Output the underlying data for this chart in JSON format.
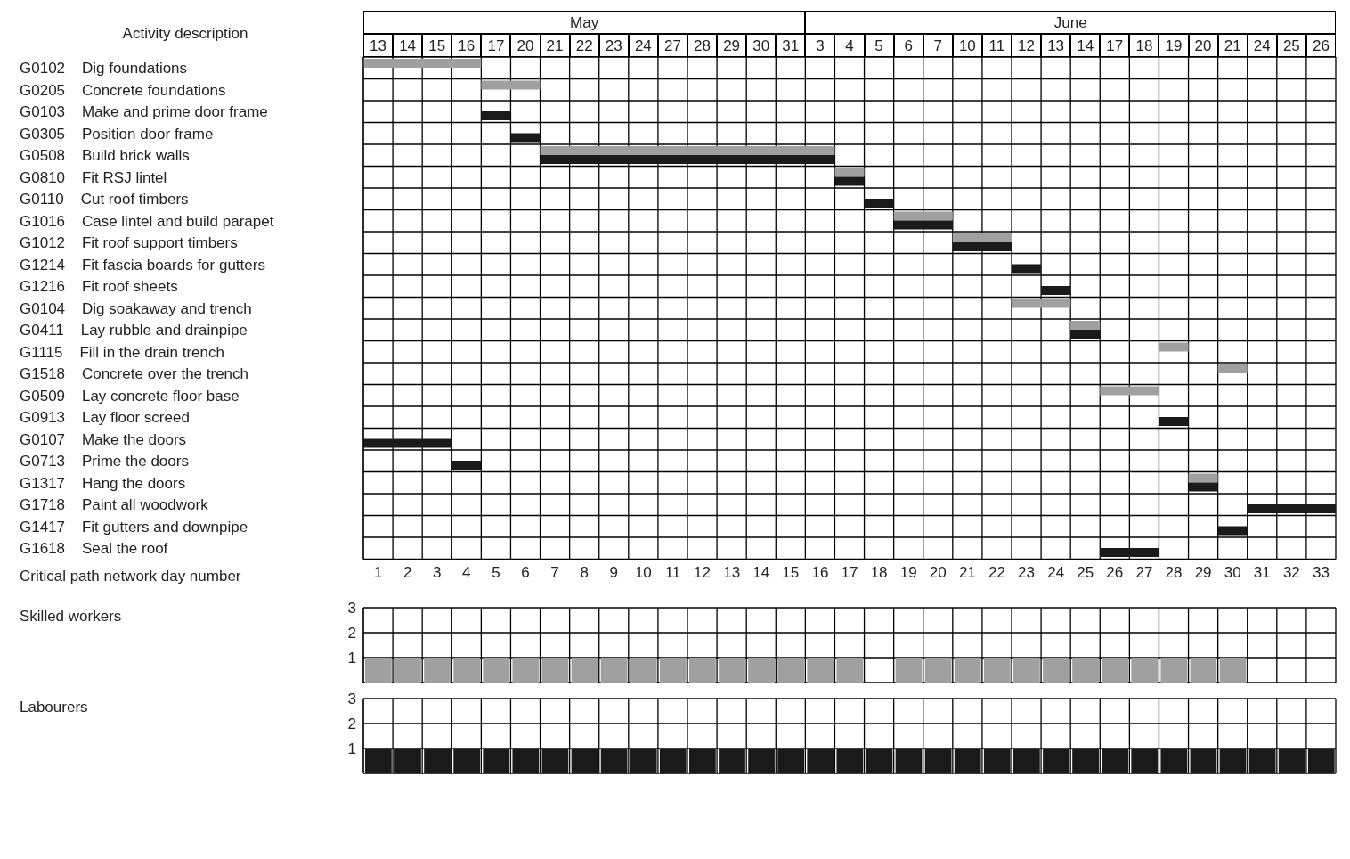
{
  "chart_data": [
    {
      "type": "bar",
      "orientation": "horizontal",
      "ylabel": "Activity description",
      "xlabel": "Critical path network day number",
      "categories": [
        "G0102    Dig foundations",
        "G0205    Concrete foundations",
        "G0103    Make and prime door frame",
        "G0305    Position door frame",
        "G0508    Build brick walls",
        "G0810    Fit RSJ lintel",
        "G0110    Cut roof timbers",
        "G1016    Case lintel and build parapet",
        "G1012    Fit roof support timbers",
        "G1214    Fit fascia boards for gutters",
        "G1216    Fit roof sheets",
        "G0104    Dig soakaway and trench",
        "G0411    Lay rubble and drainpipe",
        "G1115    Fill in the drain trench",
        "G1518    Concrete over the trench",
        "G0509    Lay concrete floor base",
        "G0913    Lay floor screed",
        "G0107    Make the doors",
        "G0713    Prime the doors",
        "G1317    Hang the doors",
        "G1718    Paint all woodwork",
        "G1417    Fit gutters and downpipe",
        "G1618    Seal the roof"
      ],
      "series": [
        {
          "color": "#a0a0a0",
          "base": [
            0.5,
            4.5,
            null,
            null,
            6.5,
            16.5,
            null,
            18.5,
            20.5,
            null,
            null,
            22.5,
            24.5,
            27.5,
            29.5,
            25.5,
            null,
            null,
            null,
            28.5,
            null,
            null,
            null
          ],
          "values": [
            4,
            2,
            null,
            null,
            10,
            1,
            null,
            2,
            2,
            null,
            null,
            2,
            1,
            1,
            1,
            2,
            null,
            null,
            null,
            1,
            null,
            null,
            null
          ]
        },
        {
          "color": "#1a1a1a",
          "base": [
            null,
            null,
            4.5,
            5.5,
            6.5,
            16.5,
            17.5,
            18.5,
            20.5,
            22.5,
            23.5,
            null,
            24.5,
            null,
            null,
            null,
            27.5,
            0.5,
            3.5,
            28.5,
            30.5,
            29.5,
            25.5
          ],
          "values": [
            null,
            null,
            1,
            1,
            10,
            1,
            1,
            2,
            2,
            1,
            1,
            null,
            1,
            null,
            null,
            null,
            1,
            3,
            1,
            1,
            3,
            1,
            2
          ]
        }
      ],
      "xlim": [
        0.5,
        33.5
      ],
      "xticks": [
        1,
        2,
        3,
        4,
        5,
        6,
        7,
        8,
        9,
        10,
        11,
        12,
        13,
        14,
        15,
        16,
        17,
        18,
        19,
        20,
        21,
        22,
        23,
        24,
        25,
        26,
        27,
        28,
        29,
        30,
        31,
        32,
        33
      ],
      "annotations": [
        "May",
        "June",
        {
          "text": "13",
          "x": 1
        },
        {
          "text": "14",
          "x": 2
        },
        {
          "text": "15",
          "x": 3
        },
        {
          "text": "16",
          "x": 4
        },
        {
          "text": "17",
          "x": 5
        },
        {
          "text": "20",
          "x": 6
        },
        {
          "text": "21",
          "x": 7
        },
        {
          "text": "22",
          "x": 8
        },
        {
          "text": "23",
          "x": 9
        },
        {
          "text": "24",
          "x": 10
        },
        {
          "text": "27",
          "x": 11
        },
        {
          "text": "28",
          "x": 12
        },
        {
          "text": "29",
          "x": 13
        },
        {
          "text": "30",
          "x": 14
        },
        {
          "text": "31",
          "x": 15
        },
        {
          "text": "3",
          "x": 16
        },
        {
          "text": "4",
          "x": 17
        },
        {
          "text": "5",
          "x": 18
        },
        {
          "text": "6",
          "x": 19
        },
        {
          "text": "7",
          "x": 20
        },
        {
          "text": "10",
          "x": 21
        },
        {
          "text": "11",
          "x": 22
        },
        {
          "text": "12",
          "x": 23
        },
        {
          "text": "13",
          "x": 24
        },
        {
          "text": "14",
          "x": 25
        },
        {
          "text": "17",
          "x": 26
        },
        {
          "text": "18",
          "x": 27
        },
        {
          "text": "19",
          "x": 28
        },
        {
          "text": "20",
          "x": 29
        },
        {
          "text": "21",
          "x": 30
        },
        {
          "text": "24",
          "x": 31
        },
        {
          "text": "25",
          "x": 32
        },
        {
          "text": "26",
          "x": 33
        }
      ],
      "grid": true
    },
    {
      "type": "bar",
      "ylabel": "Skilled workers",
      "x": [
        1,
        2,
        3,
        4,
        5,
        6,
        7,
        8,
        9,
        10,
        11,
        12,
        13,
        14,
        15,
        16,
        17,
        18,
        19,
        20,
        21,
        22,
        23,
        24,
        25,
        26,
        27,
        28,
        29,
        30
      ],
      "xlim": [
        0.5,
        33.5
      ],
      "values": [
        1,
        1,
        1,
        1,
        1,
        1,
        1,
        1,
        1,
        1,
        1,
        1,
        1,
        1,
        1,
        1,
        1,
        null,
        1,
        1,
        1,
        1,
        1,
        1,
        1,
        1,
        1,
        1,
        1,
        1
      ],
      "color": "#a0a0a0",
      "ylim": [
        0,
        3
      ],
      "yticks": [
        1,
        2,
        3
      ],
      "grid": true,
      "tick_labels": "y"
    },
    {
      "type": "bar",
      "ylabel": "Labourers",
      "x": [
        1,
        2,
        3,
        4,
        5,
        6,
        7,
        8,
        9,
        10,
        11,
        12,
        13,
        14,
        15,
        16,
        17,
        18,
        19,
        20,
        21,
        22,
        23,
        24,
        25,
        26,
        27,
        28,
        29,
        30,
        31,
        32,
        33
      ],
      "xlim": [
        0.5,
        33.5
      ],
      "values": [
        1,
        1,
        1,
        1,
        1,
        1,
        1,
        1,
        1,
        1,
        1,
        1,
        1,
        1,
        1,
        1,
        1,
        1,
        1,
        1,
        1,
        1,
        1,
        1,
        1,
        1,
        1,
        1,
        1,
        1,
        1,
        1,
        1
      ],
      "color": "#1a1a1a",
      "ylim": [
        0,
        3
      ],
      "yticks": [
        1,
        2,
        3
      ],
      "grid": true,
      "tick_labels": "y"
    }
  ]
}
